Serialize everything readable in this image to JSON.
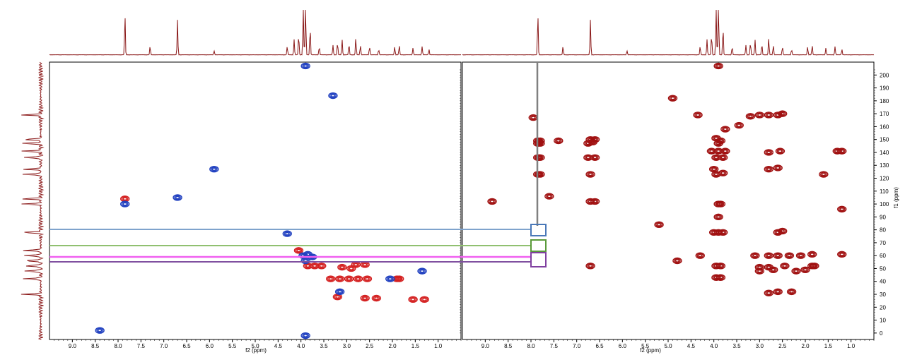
{
  "colors": {
    "background": "#ffffff",
    "projection": "#8b1a1a",
    "contour_positive": "#d42020",
    "contour_negative": "#2040c0",
    "contour_dark": "#a01010",
    "frame": "#000000",
    "guide_vertical": "#808080",
    "guide_blue": "#7fa3cc",
    "guide_green": "#90c070",
    "guide_pink": "#f060f0",
    "guide_purple": "#8050a0",
    "box_blue": "#4a78b8",
    "box_green": "#5a9a3a",
    "box_purple": "#8040a0"
  },
  "chart_data": [
    {
      "panel": "left",
      "type": "heatmap",
      "subtype": "2D NMR contour plot (multiplicity-edited HSQC)",
      "xlabel": "f2 (ppm)",
      "ylabel": "",
      "xlim": [
        9.5,
        0.5
      ],
      "ylim": [
        210,
        -5
      ],
      "x_ticks": [
        "9.0",
        "8.5",
        "8.0",
        "7.5",
        "7.0",
        "6.5",
        "6.0",
        "5.5",
        "5.0",
        "4.5",
        "4.0",
        "3.5",
        "3.0",
        "2.5",
        "2.0",
        "1.5",
        "1.0"
      ],
      "tick_values": [
        9.0,
        8.5,
        8.0,
        7.5,
        7.0,
        6.5,
        6.0,
        5.5,
        5.0,
        4.5,
        4.0,
        3.5,
        3.0,
        2.5,
        2.0,
        1.5,
        1.0
      ],
      "grid": false,
      "series": [
        {
          "sign": "positive",
          "points": [
            [
              3.85,
              52
            ],
            [
              3.7,
              52
            ],
            [
              3.35,
              42
            ],
            [
              3.15,
              42
            ],
            [
              2.95,
              42
            ],
            [
              2.75,
              42
            ],
            [
              2.55,
              42
            ],
            [
              1.9,
              42
            ],
            [
              1.85,
              42
            ],
            [
              4.05,
              64
            ],
            [
              3.55,
              52
            ],
            [
              3.1,
              51
            ],
            [
              2.8,
              53
            ],
            [
              2.6,
              53
            ],
            [
              2.9,
              50
            ],
            [
              2.6,
              27
            ],
            [
              2.35,
              27
            ],
            [
              1.55,
              26
            ],
            [
              1.3,
              26
            ],
            [
              7.85,
              104
            ],
            [
              3.2,
              28
            ]
          ]
        },
        {
          "sign": "negative",
          "points": [
            [
              3.15,
              32
            ],
            [
              3.9,
              56
            ],
            [
              3.95,
              60
            ],
            [
              3.85,
              61
            ],
            [
              3.75,
              59
            ],
            [
              4.3,
              77
            ],
            [
              1.35,
              48
            ],
            [
              7.85,
              100
            ],
            [
              6.7,
              105
            ],
            [
              5.9,
              127
            ],
            [
              2.05,
              42
            ],
            [
              8.4,
              2
            ],
            [
              3.9,
              -2
            ],
            [
              3.3,
              184
            ],
            [
              3.9,
              207
            ]
          ]
        }
      ]
    },
    {
      "panel": "right",
      "type": "heatmap",
      "subtype": "2D NMR contour plot (HMBC)",
      "xlabel": "f2 (ppm)",
      "ylabel": "f1 (ppm)",
      "xlim": [
        9.5,
        0.5
      ],
      "ylim": [
        210,
        -5
      ],
      "x_ticks": [
        "9.0",
        "8.5",
        "8.0",
        "7.5",
        "7.0",
        "6.5",
        "6.0",
        "5.5",
        "5.0",
        "4.5",
        "4.0",
        "3.5",
        "3.0",
        "2.5",
        "2.0",
        "1.5",
        "1.0"
      ],
      "tick_values": [
        9.0,
        8.5,
        8.0,
        7.5,
        7.0,
        6.5,
        6.0,
        5.5,
        5.0,
        4.5,
        4.0,
        3.5,
        3.0,
        2.5,
        2.0,
        1.5,
        1.0
      ],
      "y_ticks": [
        "0",
        "10",
        "20",
        "30",
        "40",
        "50",
        "60",
        "70",
        "80",
        "90",
        "100",
        "110",
        "120",
        "130",
        "140",
        "150",
        "160",
        "170",
        "180",
        "190",
        "200"
      ],
      "y_tick_values": [
        0,
        10,
        20,
        30,
        40,
        50,
        60,
        70,
        80,
        90,
        100,
        110,
        120,
        130,
        140,
        150,
        160,
        170,
        180,
        190,
        200
      ],
      "grid": false,
      "points": [
        [
          2.8,
          31
        ],
        [
          2.6,
          32
        ],
        [
          2.3,
          32
        ],
        [
          3.95,
          43
        ],
        [
          3.85,
          43
        ],
        [
          3.0,
          48
        ],
        [
          2.7,
          49
        ],
        [
          2.2,
          48
        ],
        [
          2.0,
          49
        ],
        [
          3.0,
          51
        ],
        [
          2.8,
          51
        ],
        [
          2.45,
          52
        ],
        [
          1.85,
          52
        ],
        [
          1.8,
          52
        ],
        [
          3.95,
          52
        ],
        [
          3.85,
          52
        ],
        [
          4.3,
          60
        ],
        [
          3.1,
          60
        ],
        [
          2.8,
          60
        ],
        [
          2.6,
          60
        ],
        [
          2.35,
          60
        ],
        [
          2.1,
          60
        ],
        [
          1.85,
          61
        ],
        [
          1.2,
          61
        ],
        [
          4.0,
          78
        ],
        [
          3.9,
          78
        ],
        [
          3.8,
          78
        ],
        [
          2.6,
          78
        ],
        [
          2.5,
          79
        ],
        [
          3.9,
          100
        ],
        [
          3.85,
          100
        ],
        [
          4.0,
          127
        ],
        [
          3.95,
          123
        ],
        [
          3.8,
          124
        ],
        [
          2.8,
          127
        ],
        [
          2.6,
          128
        ],
        [
          3.95,
          136
        ],
        [
          3.8,
          136
        ],
        [
          4.05,
          141
        ],
        [
          3.9,
          141
        ],
        [
          3.75,
          141
        ],
        [
          2.8,
          140
        ],
        [
          2.55,
          141
        ],
        [
          1.3,
          141
        ],
        [
          1.2,
          141
        ],
        [
          3.9,
          147
        ],
        [
          3.85,
          149
        ],
        [
          3.95,
          151
        ],
        [
          3.2,
          168
        ],
        [
          3.0,
          169
        ],
        [
          2.8,
          169
        ],
        [
          2.6,
          169
        ],
        [
          2.5,
          170
        ],
        [
          4.35,
          169
        ],
        [
          6.7,
          52
        ],
        [
          6.7,
          123
        ],
        [
          6.75,
          136
        ],
        [
          6.6,
          136
        ],
        [
          6.75,
          147
        ],
        [
          6.65,
          148
        ],
        [
          6.7,
          150
        ],
        [
          6.6,
          150
        ],
        [
          6.7,
          102
        ],
        [
          6.6,
          102
        ],
        [
          8.85,
          102
        ],
        [
          7.85,
          123
        ],
        [
          7.8,
          123
        ],
        [
          7.85,
          136
        ],
        [
          7.8,
          136
        ],
        [
          7.85,
          147
        ],
        [
          7.8,
          147
        ],
        [
          7.85,
          149
        ],
        [
          7.8,
          149
        ],
        [
          7.6,
          106
        ],
        [
          7.4,
          149
        ],
        [
          7.95,
          167
        ],
        [
          5.2,
          84
        ],
        [
          4.9,
          182
        ],
        [
          4.8,
          56
        ],
        [
          1.2,
          96
        ],
        [
          1.6,
          123
        ],
        [
          3.9,
          90
        ],
        [
          3.75,
          158
        ],
        [
          3.45,
          161
        ],
        [
          3.9,
          207
        ]
      ]
    }
  ]
}
